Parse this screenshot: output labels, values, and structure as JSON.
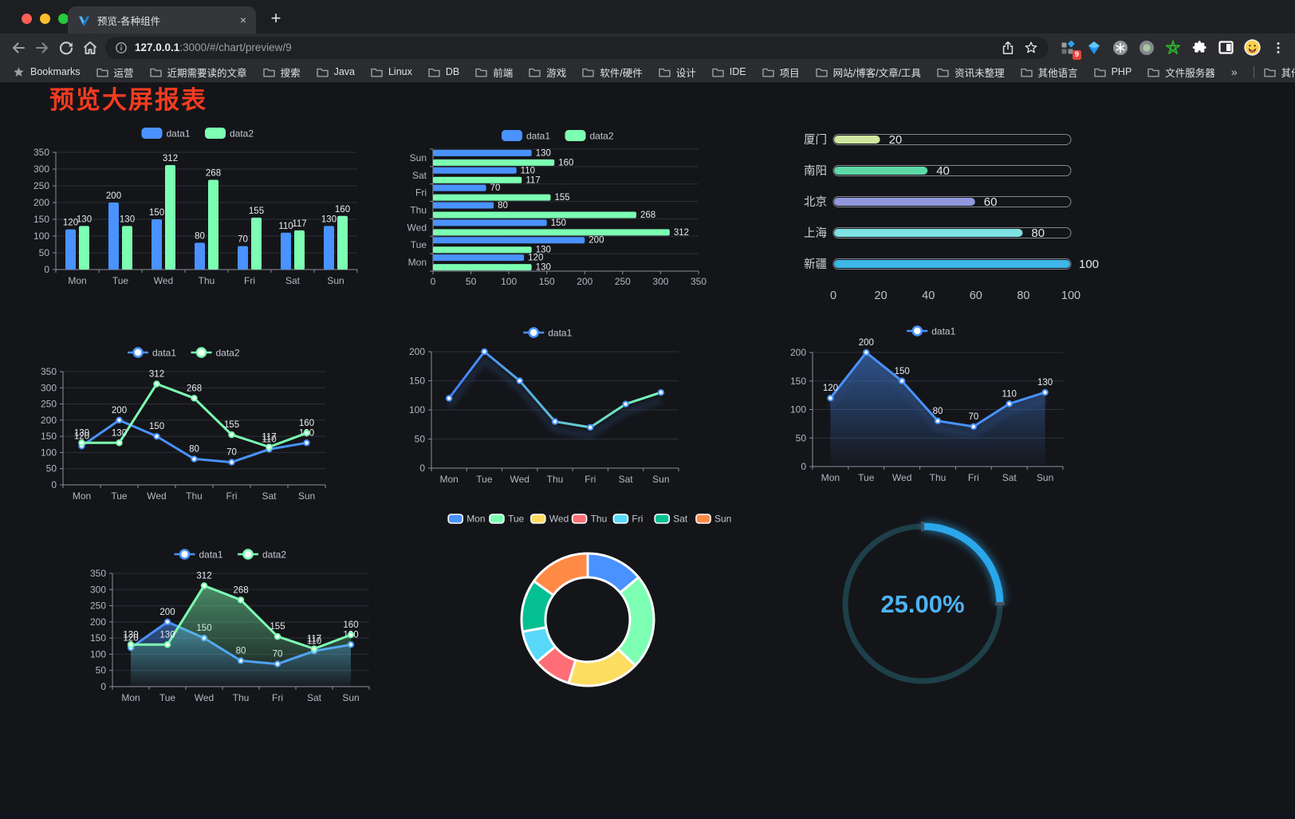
{
  "browser": {
    "traffic_lights": [
      "#ff5f57",
      "#febc2e",
      "#28c840"
    ],
    "tab": {
      "title": "预览-各种组件",
      "close_label": "×",
      "new_tab_label": "+"
    },
    "address": {
      "host": "127.0.0.1",
      "path": ":3000/#/chart/preview/9"
    },
    "extension_badge": "9",
    "bookmarks_bar": {
      "root_label": "Bookmarks",
      "folders": [
        "运营",
        "近期需要读的文章",
        "搜索",
        "Java",
        "Linux",
        "DB",
        "前端",
        "游戏",
        "软件/硬件",
        "设计",
        "IDE",
        "项目",
        "网站/博客/文章/工具",
        "资讯未整理",
        "其他语言",
        "PHP",
        "文件服务器"
      ],
      "overflow_label": "»",
      "other_label": "其他书签"
    }
  },
  "page": {
    "heading": "预览大屏报表",
    "heading_color": "#f53b20"
  },
  "chart_data": [
    {
      "id": "grouped-bar",
      "type": "bar",
      "categories": [
        "Mon",
        "Tue",
        "Wed",
        "Thu",
        "Fri",
        "Sat",
        "Sun"
      ],
      "series": [
        {
          "name": "data1",
          "color": "#4992ff",
          "values": [
            120,
            200,
            150,
            80,
            70,
            110,
            130
          ]
        },
        {
          "name": "data2",
          "color": "#7cffb2",
          "values": [
            130,
            130,
            312,
            268,
            155,
            117,
            160
          ]
        }
      ],
      "ylim": [
        0,
        350
      ],
      "yticks": [
        0,
        50,
        100,
        150,
        200,
        250,
        300,
        350
      ],
      "show_values": true,
      "legend_position": "top",
      "grid": true
    },
    {
      "id": "grouped-bar-horizontal",
      "type": "bar-horizontal",
      "categories": [
        "Mon",
        "Tue",
        "Wed",
        "Thu",
        "Fri",
        "Sat",
        "Sun"
      ],
      "series": [
        {
          "name": "data1",
          "color": "#4992ff",
          "values": [
            120,
            200,
            150,
            80,
            70,
            110,
            130
          ]
        },
        {
          "name": "data2",
          "color": "#7cffb2",
          "values": [
            130,
            130,
            312,
            268,
            155,
            117,
            160
          ]
        }
      ],
      "xlim": [
        0,
        350
      ],
      "xticks": [
        0,
        50,
        100,
        150,
        200,
        250,
        300,
        350
      ],
      "show_values": true,
      "legend_position": "top"
    },
    {
      "id": "city-progress",
      "type": "progress",
      "items": [
        {
          "label": "厦门",
          "value": 20,
          "color": "#cfe6a0"
        },
        {
          "label": "南阳",
          "value": 40,
          "color": "#5ed9a8"
        },
        {
          "label": "北京",
          "value": 60,
          "color": "#9198dd"
        },
        {
          "label": "上海",
          "value": 80,
          "color": "#7fe2e3"
        },
        {
          "label": "新疆",
          "value": 100,
          "color": "#3db6e8"
        }
      ],
      "max": 100,
      "xticks": [
        0,
        20,
        40,
        60,
        80,
        100
      ]
    },
    {
      "id": "dual-line",
      "type": "line",
      "categories": [
        "Mon",
        "Tue",
        "Wed",
        "Thu",
        "Fri",
        "Sat",
        "Sun"
      ],
      "series": [
        {
          "name": "data1",
          "color": "#4992ff",
          "values": [
            120,
            200,
            150,
            80,
            70,
            110,
            130
          ]
        },
        {
          "name": "data2",
          "color": "#7cffb2",
          "values": [
            130,
            130,
            312,
            268,
            155,
            117,
            160
          ]
        }
      ],
      "ylim": [
        0,
        350
      ],
      "yticks": [
        0,
        50,
        100,
        150,
        200,
        250,
        300,
        350
      ],
      "show_values": true,
      "legend_position": "top"
    },
    {
      "id": "gradient-line",
      "type": "line",
      "categories": [
        "Mon",
        "Tue",
        "Wed",
        "Thu",
        "Fri",
        "Sat",
        "Sun"
      ],
      "series": [
        {
          "name": "data1",
          "color": "#4992ff",
          "gradient": [
            "#3f7dff",
            "#7cffb2"
          ],
          "values": [
            120,
            200,
            150,
            80,
            70,
            110,
            130
          ]
        }
      ],
      "ylim": [
        0,
        200
      ],
      "yticks": [
        0,
        50,
        100,
        150,
        200
      ],
      "show_values": false,
      "shadow": true,
      "legend_position": "top"
    },
    {
      "id": "single-area-line",
      "type": "line",
      "categories": [
        "Mon",
        "Tue",
        "Wed",
        "Thu",
        "Fri",
        "Sat",
        "Sun"
      ],
      "series": [
        {
          "name": "data1",
          "color": "#4992ff",
          "area": true,
          "values": [
            120,
            200,
            150,
            80,
            70,
            110,
            130
          ]
        }
      ],
      "ylim": [
        0,
        200
      ],
      "yticks": [
        0,
        50,
        100,
        150,
        200
      ],
      "show_values": true,
      "shadow": true,
      "legend_position": "top"
    },
    {
      "id": "dual-area-line",
      "type": "line",
      "categories": [
        "Mon",
        "Tue",
        "Wed",
        "Thu",
        "Fri",
        "Sat",
        "Sun"
      ],
      "series": [
        {
          "name": "data1",
          "color": "#4992ff",
          "area": true,
          "values": [
            120,
            200,
            150,
            80,
            70,
            110,
            130
          ]
        },
        {
          "name": "data2",
          "color": "#7cffb2",
          "area": true,
          "values": [
            130,
            130,
            312,
            268,
            155,
            117,
            160
          ]
        }
      ],
      "ylim": [
        0,
        350
      ],
      "yticks": [
        0,
        50,
        100,
        150,
        200,
        250,
        300,
        350
      ],
      "show_values": true,
      "legend_position": "top"
    },
    {
      "id": "weekday-donut",
      "type": "pie",
      "categories": [
        "Mon",
        "Tue",
        "Wed",
        "Thu",
        "Fri",
        "Sat",
        "Sun"
      ],
      "values": [
        120,
        200,
        150,
        80,
        70,
        110,
        130
      ],
      "colors": [
        "#4992ff",
        "#7cffb2",
        "#fddd60",
        "#ff6e76",
        "#58d9f9",
        "#05c091",
        "#ff8a45"
      ],
      "inner_radius_ratio": 0.64,
      "legend_position": "top"
    },
    {
      "id": "percent-gauge",
      "type": "gauge",
      "value": 25,
      "max": 100,
      "display": "25.00%",
      "color": "#2aa7eb",
      "track_color": "#1d4049"
    }
  ]
}
